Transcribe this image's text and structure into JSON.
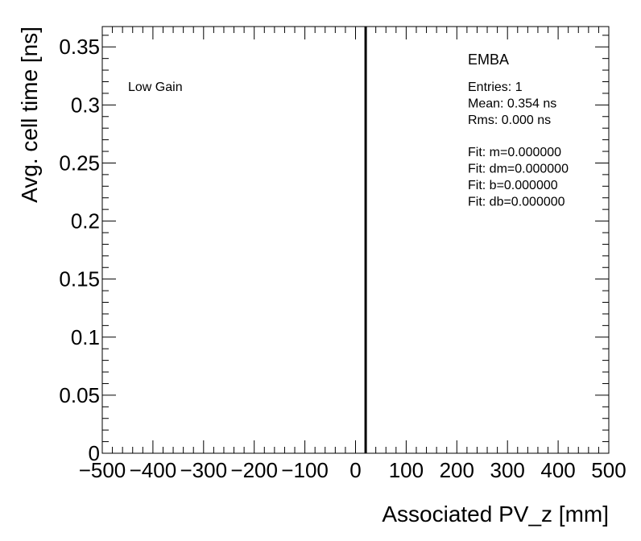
{
  "chart_data": {
    "type": "scatter",
    "xlabel": "Associated PV_z [mm]",
    "ylabel": "Avg. cell time [ns]",
    "xlim": [
      -500,
      500
    ],
    "ylim": [
      0,
      0.3675
    ],
    "xticks": [
      -500,
      -400,
      -300,
      -200,
      -100,
      0,
      100,
      200,
      300,
      400,
      500
    ],
    "xtick_labels": [
      "−500",
      "−400",
      "−300",
      "−200",
      "−100",
      "0",
      "100",
      "200",
      "300",
      "400",
      "500"
    ],
    "yticks": [
      0,
      0.05,
      0.1,
      0.15,
      0.2,
      0.25,
      0.3,
      0.35
    ],
    "ytick_labels": [
      "0",
      "0.05",
      "0.1",
      "0.15",
      "0.2",
      "0.25",
      "0.3",
      "0.35"
    ],
    "series": [
      {
        "x": [
          20
        ],
        "y": [
          0.354
        ],
        "error_low": [
          0
        ],
        "error_high": [
          0.354
        ]
      }
    ],
    "annotations": {
      "gain": "Low Gain",
      "partition": "EMBA",
      "stats": [
        "Entries: 1",
        "Mean: 0.354 ns",
        "Rms: 0.000 ns"
      ],
      "fit": [
        "Fit: m=0.000000",
        "Fit: dm=0.000000",
        "Fit: b=0.000000",
        "Fit: db=0.000000"
      ]
    },
    "grid": false
  }
}
